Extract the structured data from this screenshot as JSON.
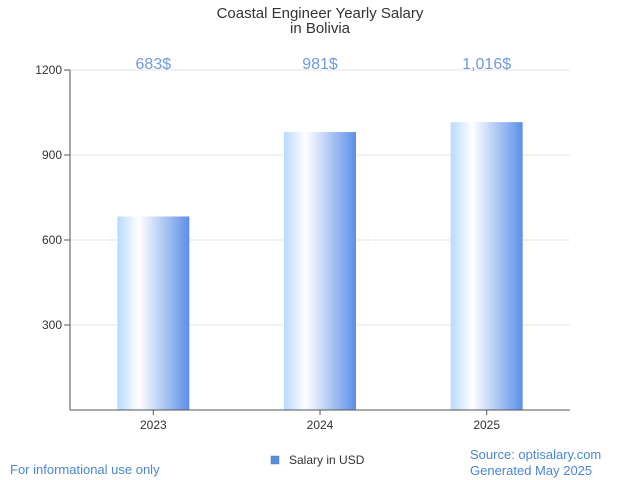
{
  "chart_data": {
    "type": "bar",
    "title": [
      "Coastal Engineer Yearly Salary",
      "in Bolivia"
    ],
    "categories": [
      "2023",
      "2024",
      "2025"
    ],
    "series": [
      {
        "name": "Salary in USD",
        "values": [
          683,
          981,
          1016
        ]
      }
    ],
    "data_labels": [
      "683$",
      "981$",
      "1,016$"
    ],
    "ylim": [
      0,
      1200
    ],
    "yticks": [
      300,
      600,
      900,
      1200
    ],
    "grid": true,
    "legend": "bottom-center"
  },
  "colors": {
    "bar_light": "#ffffff",
    "bar_mid": "#b8daff",
    "bar_dark": "#5c8fe8",
    "grid": "#e6e6e6",
    "axis": "#555555",
    "label": "#6f9be0",
    "legend_swatch": "#5b8fd9",
    "footer_text": "#4a86d8"
  },
  "footer": {
    "disclaimer": "For informational use only",
    "source": "Source: optisalary.com",
    "generated": "Generated May 2025"
  }
}
